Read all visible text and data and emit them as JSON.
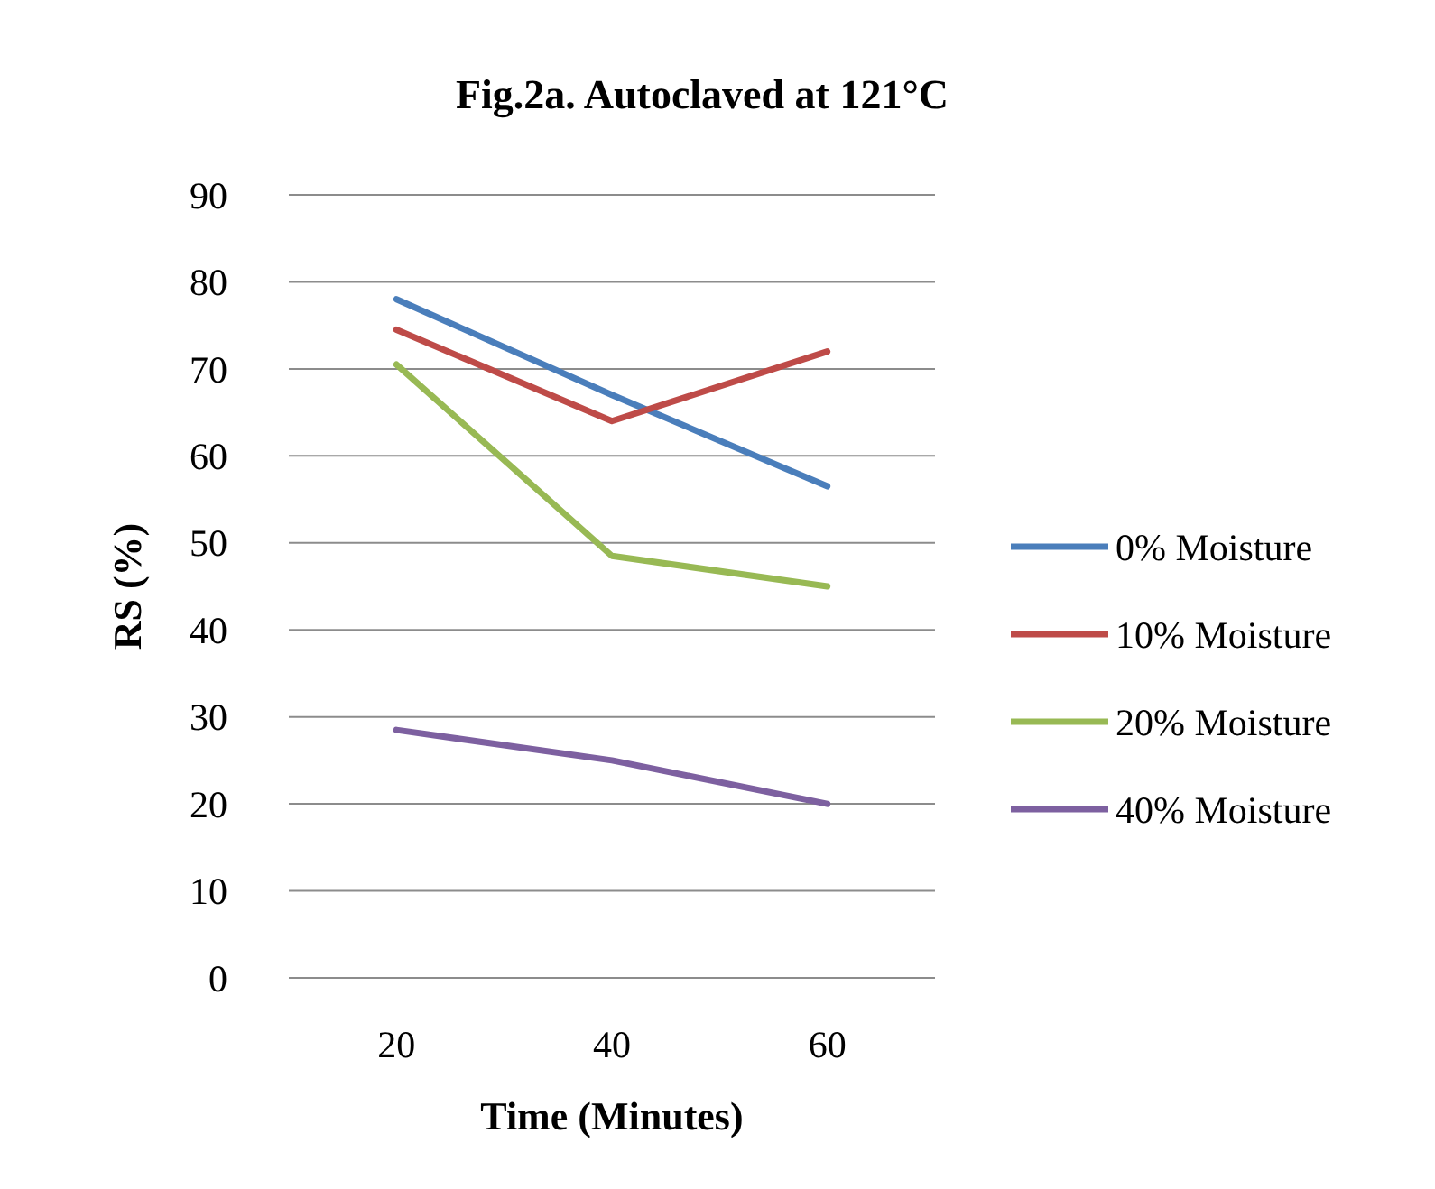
{
  "chart_data": {
    "type": "line",
    "title": "Fig.2a. Autoclaved at 121°C",
    "xlabel": "Time (Minutes)",
    "ylabel": "RS (%)",
    "categories": [
      "20",
      "40",
      "60"
    ],
    "series": [
      {
        "name": "0% Moisture",
        "color": "#4a7ebb",
        "values": [
          78,
          67,
          56.5
        ]
      },
      {
        "name": "10% Moisture",
        "color": "#be4b48",
        "values": [
          74.5,
          64,
          72
        ]
      },
      {
        "name": "20% Moisture",
        "color": "#98b954",
        "values": [
          70.5,
          48.5,
          45
        ]
      },
      {
        "name": "40% Moisture",
        "color": "#7d60a0",
        "values": [
          28.5,
          25,
          20
        ]
      }
    ],
    "ylim": [
      0,
      90
    ],
    "yticks": [
      0,
      10,
      20,
      30,
      40,
      50,
      60,
      70,
      80,
      90
    ],
    "grid": "y",
    "legend": "right",
    "marker": "none",
    "line_style": "solid"
  }
}
